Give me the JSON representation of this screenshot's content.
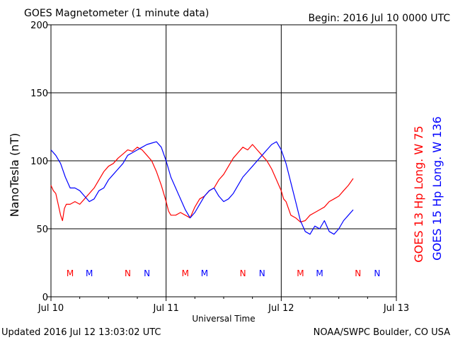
{
  "chart_data": {
    "type": "line",
    "title": "GOES Magnetometer (1 minute data)",
    "begin": "Begin:  2016 Jul 10 0000 UTC",
    "updated": "Updated 2016 Jul 12 13:03:02 UTC",
    "credit": "NOAA/SWPC Boulder, CO USA",
    "xlabel": "Universal Time",
    "ylabel": "NanoTesla (nT)",
    "xlim": [
      0,
      72
    ],
    "ylim": [
      0,
      200
    ],
    "x_unit": "hours since 2016 Jul 10 0000 UTC",
    "y_ticks": [
      0,
      50,
      100,
      150,
      200
    ],
    "x_ticks": [
      {
        "x": 0,
        "label": "Jul 10"
      },
      {
        "x": 24,
        "label": "Jul 11"
      },
      {
        "x": 48,
        "label": "Jul 12"
      },
      {
        "x": 72,
        "label": "Jul 13"
      }
    ],
    "grid": true,
    "series": [
      {
        "name": "GOES 13 Hp  Long. W 75",
        "color": "#ff0000",
        "points": [
          [
            0,
            82
          ],
          [
            0.5,
            78
          ],
          [
            1,
            76
          ],
          [
            1.5,
            68
          ],
          [
            2,
            60
          ],
          [
            2.4,
            56
          ],
          [
            2.8,
            65
          ],
          [
            3.2,
            68
          ],
          [
            4,
            68
          ],
          [
            5,
            70
          ],
          [
            6,
            68
          ],
          [
            7,
            72
          ],
          [
            8,
            76
          ],
          [
            9,
            80
          ],
          [
            10,
            86
          ],
          [
            11,
            92
          ],
          [
            12,
            96
          ],
          [
            13,
            98
          ],
          [
            14,
            102
          ],
          [
            15,
            105
          ],
          [
            16,
            108
          ],
          [
            17,
            107
          ],
          [
            18,
            110
          ],
          [
            19,
            108
          ],
          [
            20,
            104
          ],
          [
            21,
            100
          ],
          [
            22,
            92
          ],
          [
            23,
            82
          ],
          [
            24,
            70
          ],
          [
            24.5,
            63
          ],
          [
            25,
            60
          ],
          [
            26,
            60
          ],
          [
            27,
            62
          ],
          [
            28,
            60
          ],
          [
            29,
            58
          ],
          [
            30,
            66
          ],
          [
            31,
            72
          ],
          [
            32,
            74
          ],
          [
            33,
            78
          ],
          [
            34,
            80
          ],
          [
            35,
            86
          ],
          [
            36,
            90
          ],
          [
            37,
            96
          ],
          [
            38,
            102
          ],
          [
            39,
            106
          ],
          [
            40,
            110
          ],
          [
            41,
            108
          ],
          [
            42,
            112
          ],
          [
            43,
            108
          ],
          [
            44,
            104
          ],
          [
            45,
            100
          ],
          [
            46,
            94
          ],
          [
            47,
            86
          ],
          [
            48,
            78
          ],
          [
            48.5,
            72
          ],
          [
            49,
            70
          ],
          [
            50,
            60
          ],
          [
            51,
            58
          ],
          [
            52,
            55
          ],
          [
            53,
            56
          ],
          [
            54,
            60
          ],
          [
            55,
            62
          ],
          [
            56,
            64
          ],
          [
            57,
            66
          ],
          [
            58,
            70
          ],
          [
            59,
            72
          ],
          [
            60,
            74
          ],
          [
            61,
            78
          ],
          [
            62,
            82
          ],
          [
            63,
            87
          ]
        ]
      },
      {
        "name": "GOES 15 Hp  Long. W 136",
        "color": "#0000ff",
        "points": [
          [
            0,
            108
          ],
          [
            1,
            104
          ],
          [
            2,
            98
          ],
          [
            3,
            88
          ],
          [
            4,
            80
          ],
          [
            5,
            80
          ],
          [
            6,
            78
          ],
          [
            7,
            74
          ],
          [
            8,
            70
          ],
          [
            9,
            72
          ],
          [
            10,
            78
          ],
          [
            11,
            80
          ],
          [
            12,
            86
          ],
          [
            13,
            90
          ],
          [
            14,
            94
          ],
          [
            15,
            98
          ],
          [
            16,
            104
          ],
          [
            17,
            106
          ],
          [
            18,
            108
          ],
          [
            19,
            110
          ],
          [
            20,
            112
          ],
          [
            21,
            113
          ],
          [
            22,
            114
          ],
          [
            23,
            110
          ],
          [
            24,
            100
          ],
          [
            25,
            88
          ],
          [
            26,
            80
          ],
          [
            27,
            72
          ],
          [
            28,
            64
          ],
          [
            29,
            58
          ],
          [
            30,
            62
          ],
          [
            31,
            68
          ],
          [
            32,
            74
          ],
          [
            33,
            78
          ],
          [
            34,
            80
          ],
          [
            35,
            74
          ],
          [
            36,
            70
          ],
          [
            37,
            72
          ],
          [
            38,
            76
          ],
          [
            39,
            82
          ],
          [
            40,
            88
          ],
          [
            41,
            92
          ],
          [
            42,
            96
          ],
          [
            43,
            100
          ],
          [
            44,
            104
          ],
          [
            45,
            108
          ],
          [
            46,
            112
          ],
          [
            47,
            114
          ],
          [
            48,
            108
          ],
          [
            49,
            98
          ],
          [
            50,
            84
          ],
          [
            51,
            70
          ],
          [
            52,
            56
          ],
          [
            53,
            48
          ],
          [
            54,
            46
          ],
          [
            55,
            52
          ],
          [
            56,
            50
          ],
          [
            57,
            56
          ],
          [
            58,
            48
          ],
          [
            59,
            46
          ],
          [
            60,
            50
          ],
          [
            61,
            56
          ],
          [
            62,
            60
          ],
          [
            63,
            64
          ]
        ]
      }
    ],
    "markers": [
      {
        "x": 4,
        "label": "M",
        "color": "#ff0000"
      },
      {
        "x": 8,
        "label": "M",
        "color": "#0000ff"
      },
      {
        "x": 16,
        "label": "N",
        "color": "#ff0000"
      },
      {
        "x": 20,
        "label": "N",
        "color": "#0000ff"
      },
      {
        "x": 28,
        "label": "M",
        "color": "#ff0000"
      },
      {
        "x": 32,
        "label": "M",
        "color": "#0000ff"
      },
      {
        "x": 40,
        "label": "N",
        "color": "#ff0000"
      },
      {
        "x": 44,
        "label": "N",
        "color": "#0000ff"
      },
      {
        "x": 52,
        "label": "M",
        "color": "#ff0000"
      },
      {
        "x": 56,
        "label": "M",
        "color": "#0000ff"
      },
      {
        "x": 64,
        "label": "N",
        "color": "#ff0000"
      },
      {
        "x": 68,
        "label": "N",
        "color": "#0000ff"
      }
    ]
  }
}
